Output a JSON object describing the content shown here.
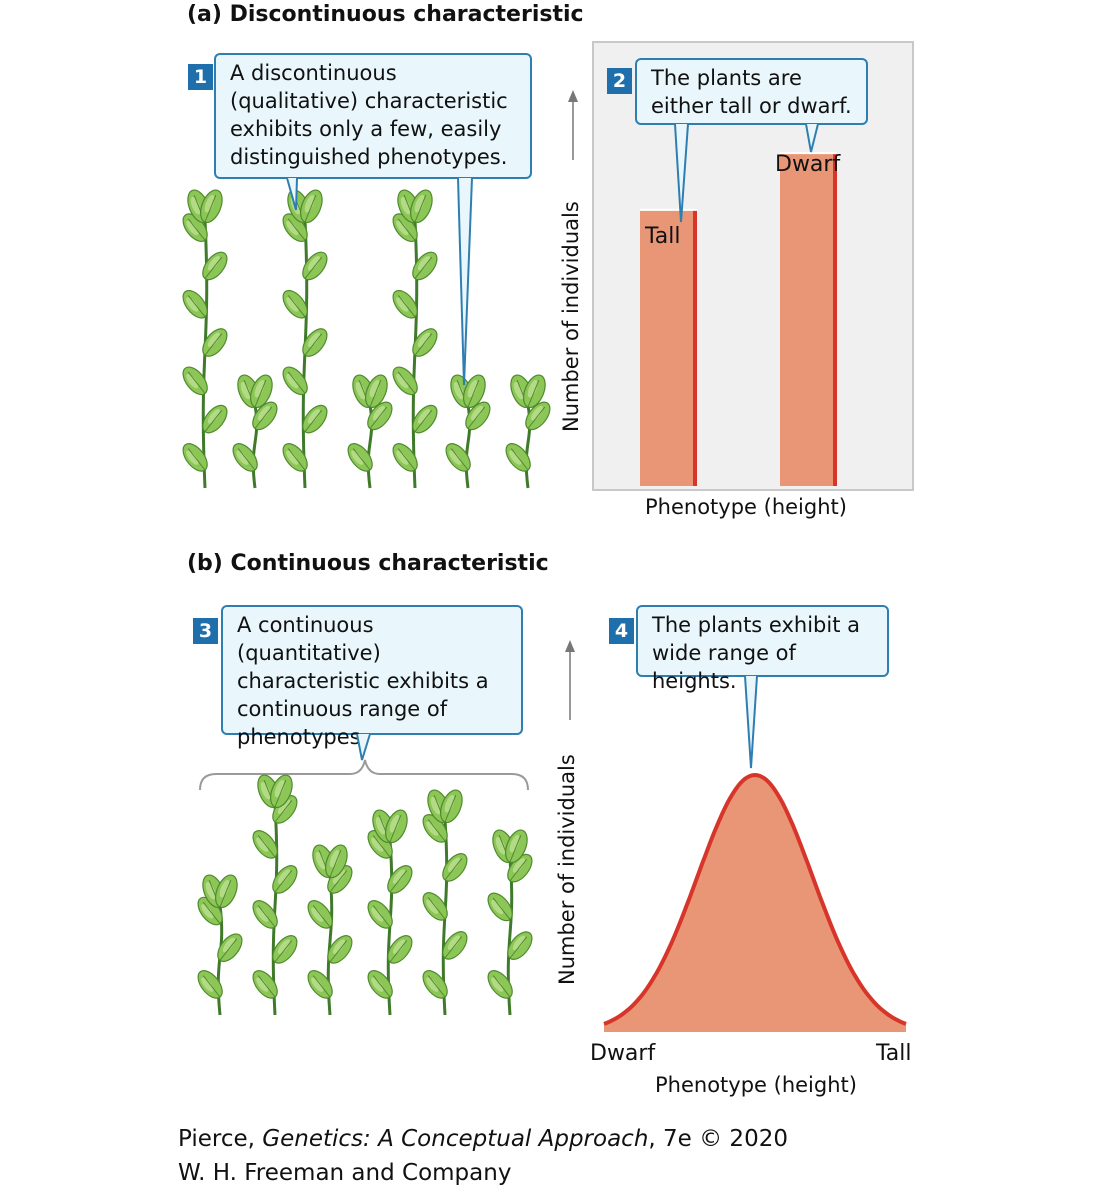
{
  "panel_a": {
    "title": "(a)  Discontinuous characteristic",
    "callout1": {
      "number": "1",
      "text": "A discontinuous (qualitative) characteristic exhibits only a few, easily distinguished phenotypes."
    },
    "callout2": {
      "number": "2",
      "text": "The plants are either tall or dwarf."
    },
    "y_axis_label": "Number of individuals",
    "x_axis_label": "Phenotype (height)",
    "bar_labels": [
      "Tall",
      "Dwarf"
    ]
  },
  "panel_b": {
    "title": "(b)  Continuous characteristic",
    "callout3": {
      "number": "3",
      "text": "A continuous (quantitative) characteristic exhibits a continuous range of phenotypes."
    },
    "callout4": {
      "number": "4",
      "text": "The plants exhibit a wide range of heights."
    },
    "y_axis_label": "Number of individuals",
    "x_axis_label": "Phenotype (height)",
    "x_min_label": "Dwarf",
    "x_max_label": "Tall"
  },
  "credit": {
    "author": "Pierce, ",
    "book": "Genetics: A Conceptual Approach",
    "edition": ", 7e © 2020",
    "publisher": "W. H. Freeman and Company"
  },
  "colors": {
    "bar": "#e89676",
    "bar_edge": "#d8352a",
    "callout_fill": "#e9f6fb",
    "callout_border": "#2e7fb0",
    "badge": "#1f6fad",
    "leaf": "#7fbf4a",
    "stem": "#3f7a2a"
  },
  "chart_data": [
    {
      "type": "bar",
      "categories": [
        "Tall",
        "Dwarf"
      ],
      "values": [
        68,
        82
      ],
      "xlabel": "Phenotype (height)",
      "ylabel": "Number of individuals"
    },
    {
      "type": "area",
      "x": [
        0,
        1,
        2,
        3,
        4,
        5,
        6,
        7,
        8,
        9,
        10
      ],
      "values": [
        0,
        3,
        13,
        38,
        74,
        100,
        74,
        38,
        13,
        3,
        0
      ],
      "xlabel": "Phenotype (height)",
      "ylabel": "Number of individuals",
      "x_tick_labels": [
        "Dwarf",
        "Tall"
      ]
    }
  ]
}
